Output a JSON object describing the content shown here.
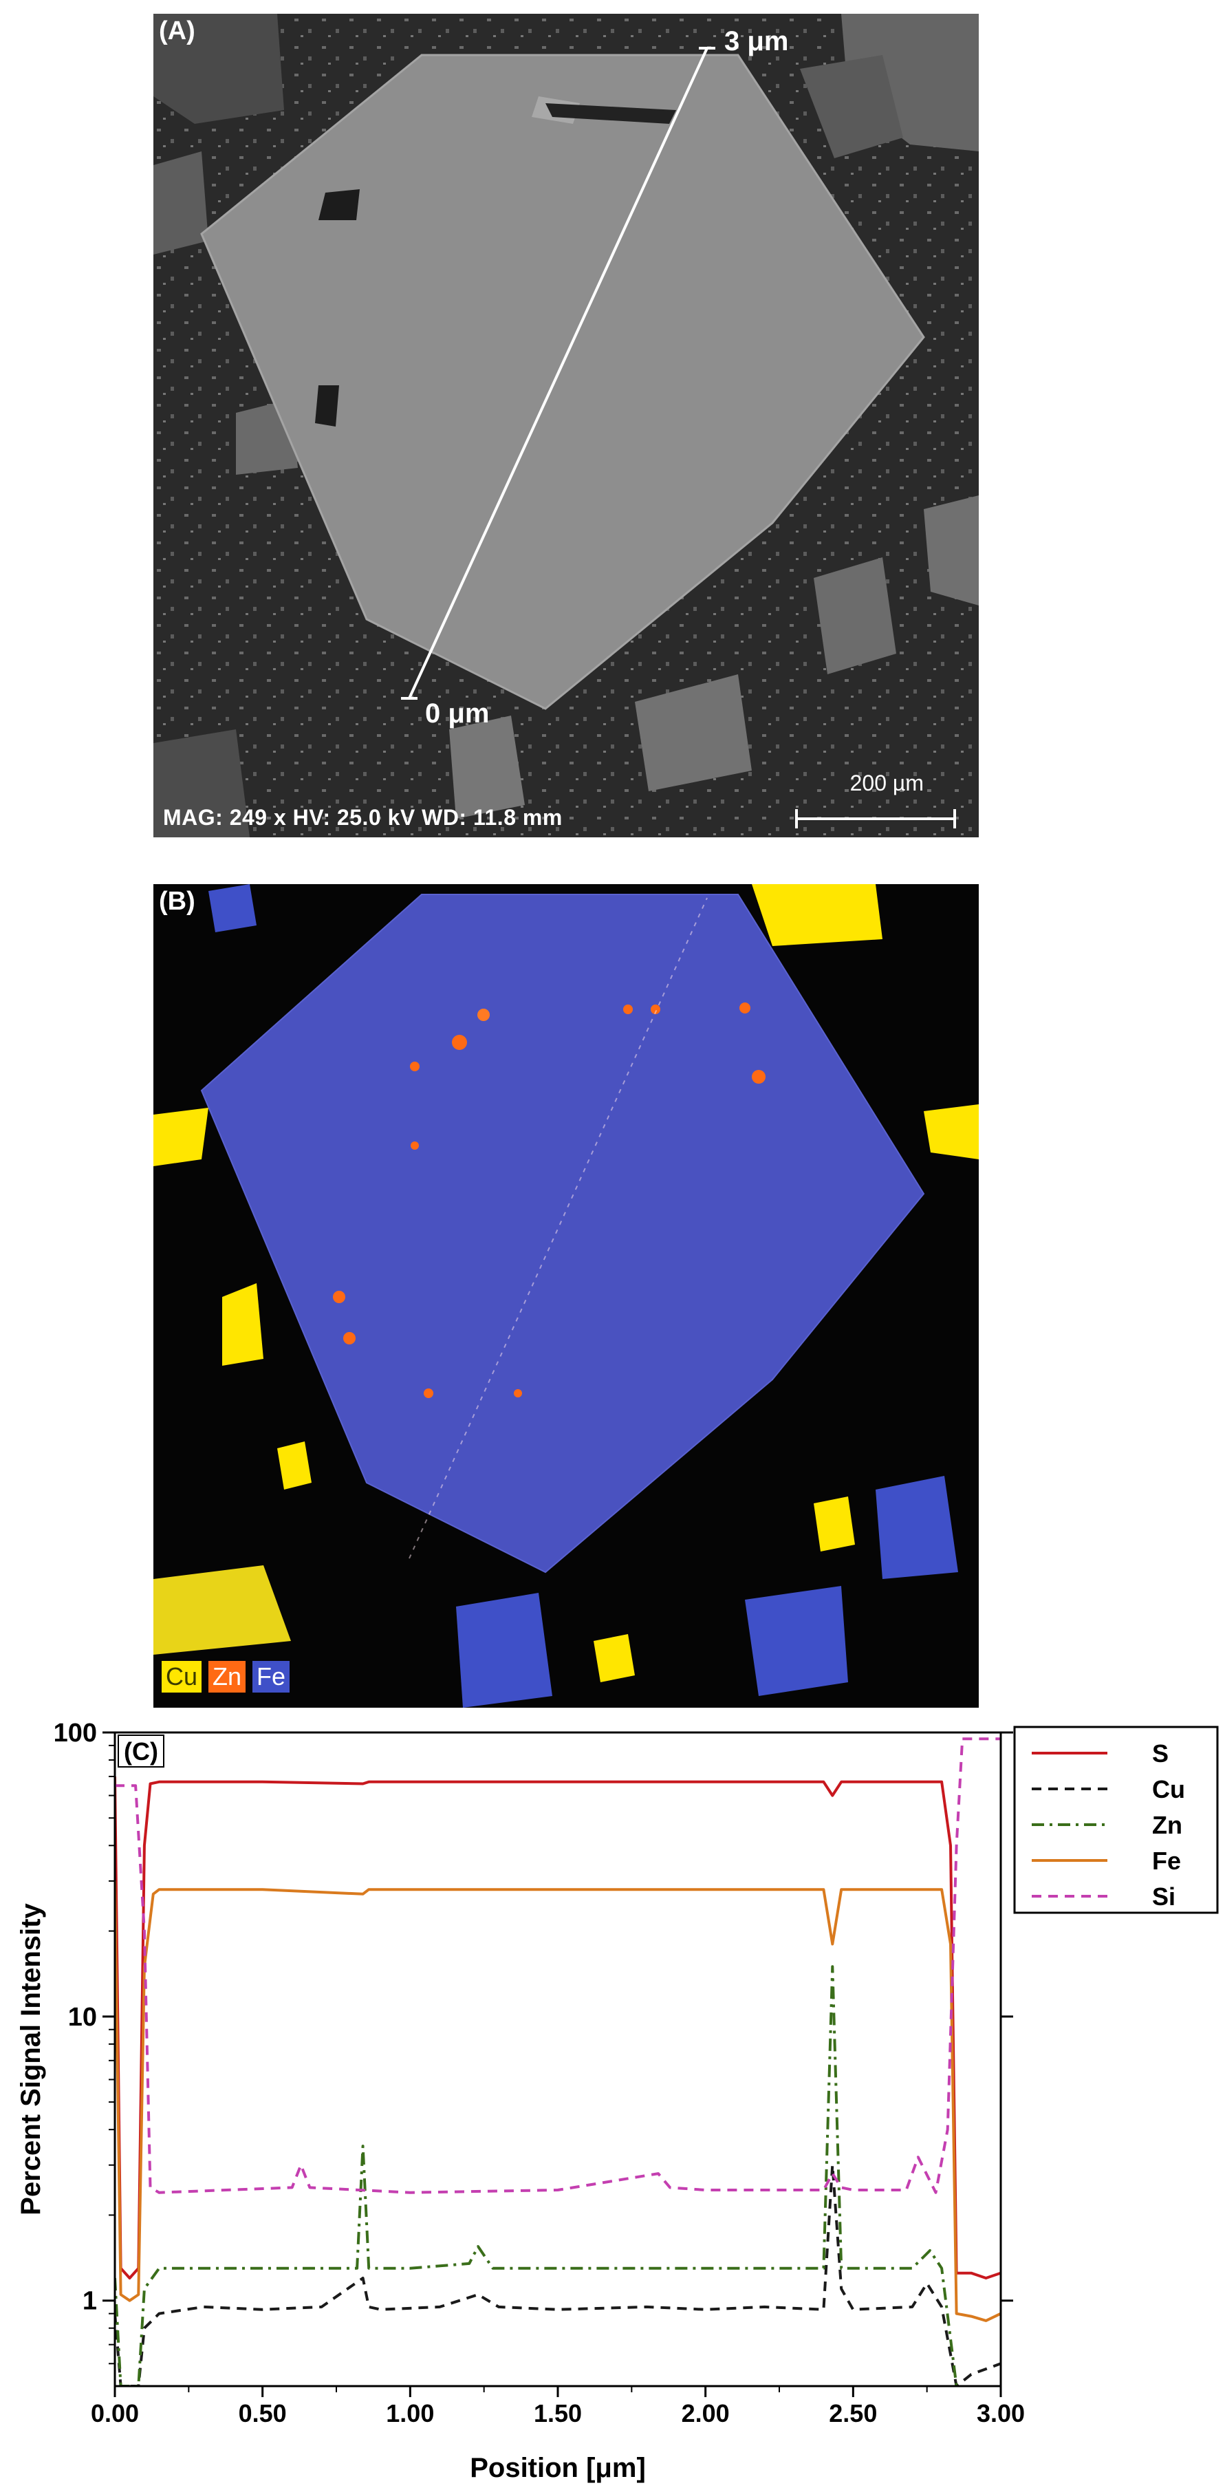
{
  "panel_a": {
    "label": "(A)",
    "line_start_label": "0 μm",
    "line_end_label": "3 μm",
    "info": "MAG: 249 x  HV: 25.0 kV  WD: 11.8 mm",
    "scale_bar": "200 µm"
  },
  "panel_b": {
    "label": "(B)",
    "legend": [
      {
        "name": "Cu",
        "color": "#ffe600",
        "text_color": "#3a3a00"
      },
      {
        "name": "Zn",
        "color": "#ff6a14",
        "text_color": "#ffffff"
      },
      {
        "name": "Fe",
        "color": "#3f50c8",
        "text_color": "#ffffff"
      }
    ]
  },
  "chart_data": {
    "type": "line",
    "panel_label": "(C)",
    "xlabel": "Position [μm]",
    "ylabel": "Percent Signal Intensity",
    "xlim": [
      0,
      3
    ],
    "ylim": [
      0.5,
      100
    ],
    "yscale": "log",
    "x_ticks": [
      "0.00",
      "0.50",
      "1.00",
      "1.50",
      "2.00",
      "2.50",
      "3.00"
    ],
    "y_ticks": [
      "1",
      "10",
      "100"
    ],
    "legend_position": "outside-right",
    "series": [
      {
        "name": "S",
        "color": "#c8181e",
        "dash": "solid",
        "x": [
          0,
          0.02,
          0.05,
          0.08,
          0.1,
          0.12,
          0.15,
          0.5,
          0.84,
          0.86,
          1.5,
          2.4,
          2.43,
          2.46,
          2.8,
          2.83,
          2.85,
          2.9,
          2.95,
          3.0
        ],
        "y": [
          70,
          1.3,
          1.2,
          1.3,
          40,
          66,
          67,
          67,
          66,
          67,
          67,
          67,
          60,
          67,
          67,
          40,
          1.25,
          1.25,
          1.2,
          1.25
        ]
      },
      {
        "name": "Cu",
        "color": "#1a1a1a",
        "dash": "dash",
        "x": [
          0,
          0.02,
          0.05,
          0.08,
          0.1,
          0.15,
          0.3,
          0.5,
          0.7,
          0.84,
          0.86,
          0.9,
          1.1,
          1.23,
          1.3,
          1.5,
          1.8,
          2.0,
          2.2,
          2.4,
          2.43,
          2.46,
          2.5,
          2.7,
          2.75,
          2.8,
          2.85,
          2.9,
          3.0
        ],
        "y": [
          0.9,
          0.5,
          0.5,
          0.5,
          0.8,
          0.9,
          0.95,
          0.93,
          0.95,
          1.2,
          0.95,
          0.93,
          0.95,
          1.05,
          0.95,
          0.93,
          0.95,
          0.93,
          0.95,
          0.93,
          3.0,
          1.1,
          0.93,
          0.95,
          1.15,
          0.95,
          0.5,
          0.55,
          0.6
        ]
      },
      {
        "name": "Zn",
        "color": "#3a6e1a",
        "dash": "dashdot",
        "x": [
          0,
          0.02,
          0.05,
          0.08,
          0.1,
          0.15,
          0.3,
          0.5,
          0.7,
          0.82,
          0.84,
          0.86,
          1.0,
          1.2,
          1.23,
          1.28,
          1.5,
          1.8,
          2.0,
          2.3,
          2.4,
          2.43,
          2.46,
          2.5,
          2.7,
          2.76,
          2.8,
          2.85,
          2.9,
          3.0
        ],
        "y": [
          1.2,
          0.5,
          0.5,
          0.5,
          1.1,
          1.3,
          1.3,
          1.3,
          1.3,
          1.3,
          3.5,
          1.3,
          1.3,
          1.35,
          1.55,
          1.3,
          1.3,
          1.3,
          1.3,
          1.3,
          1.3,
          15.0,
          1.3,
          1.3,
          1.3,
          1.5,
          1.3,
          0.5,
          0.4,
          0.4
        ]
      },
      {
        "name": "Fe",
        "color": "#d97a1e",
        "dash": "solid",
        "x": [
          0,
          0.02,
          0.05,
          0.08,
          0.1,
          0.13,
          0.15,
          0.5,
          0.84,
          0.86,
          1.5,
          2.4,
          2.43,
          2.46,
          2.8,
          2.83,
          2.85,
          2.9,
          2.95,
          3.0
        ],
        "y": [
          30,
          1.05,
          1.0,
          1.05,
          15,
          27,
          28,
          28,
          27,
          28,
          28,
          28,
          18,
          28,
          28,
          18,
          0.9,
          0.88,
          0.85,
          0.9
        ]
      },
      {
        "name": "Si",
        "color": "#c43fb0",
        "dash": "dash",
        "x": [
          0,
          0.03,
          0.07,
          0.1,
          0.12,
          0.15,
          0.6,
          0.63,
          0.66,
          1.0,
          1.5,
          1.84,
          1.88,
          2.0,
          2.4,
          2.43,
          2.46,
          2.5,
          2.68,
          2.72,
          2.78,
          2.82,
          2.85,
          2.87,
          3.0
        ],
        "y": [
          65,
          65,
          65,
          20,
          2.5,
          2.4,
          2.5,
          3.0,
          2.5,
          2.4,
          2.45,
          2.8,
          2.5,
          2.45,
          2.45,
          2.8,
          2.5,
          2.45,
          2.45,
          3.2,
          2.4,
          4.0,
          40,
          95,
          95
        ]
      }
    ]
  }
}
